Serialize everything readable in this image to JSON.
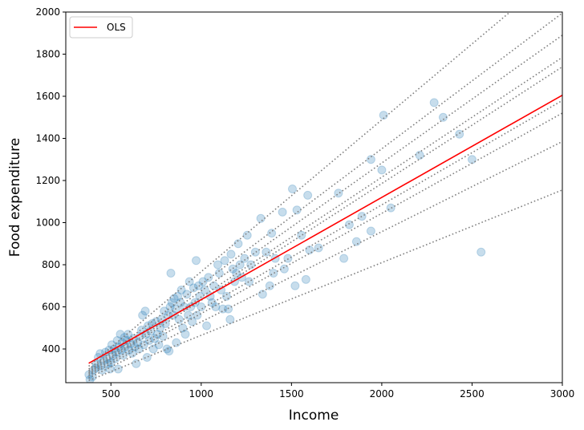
{
  "chart_data": {
    "type": "scatter",
    "title": "",
    "xlabel": "Income",
    "ylabel": "Food expenditure",
    "xlim": [
      250,
      3000
    ],
    "ylim": [
      240,
      2000
    ],
    "xticks": [
      500,
      1000,
      1500,
      2000,
      2500,
      3000
    ],
    "yticks": [
      400,
      600,
      800,
      1000,
      1200,
      1400,
      1600,
      1800,
      2000
    ],
    "grid": false,
    "legend": {
      "position": "upper left",
      "entries": [
        {
          "label": "OLS",
          "color": "#ff0000",
          "style": "solid"
        }
      ]
    },
    "scatter": {
      "color": "#1f77b4",
      "alpha": 0.25,
      "points": [
        [
          378,
          278
        ],
        [
          384,
          255
        ],
        [
          398,
          268
        ],
        [
          405,
          300
        ],
        [
          415,
          310
        ],
        [
          420,
          330
        ],
        [
          430,
          360
        ],
        [
          440,
          378
        ],
        [
          445,
          320
        ],
        [
          452,
          300
        ],
        [
          460,
          345
        ],
        [
          470,
          385
        ],
        [
          478,
          355
        ],
        [
          485,
          330
        ],
        [
          490,
          395
        ],
        [
          495,
          305
        ],
        [
          500,
          335
        ],
        [
          505,
          420
        ],
        [
          512,
          370
        ],
        [
          518,
          400
        ],
        [
          525,
          355
        ],
        [
          530,
          385
        ],
        [
          535,
          440
        ],
        [
          540,
          305
        ],
        [
          545,
          410
        ],
        [
          552,
          470
        ],
        [
          558,
          395
        ],
        [
          562,
          430
        ],
        [
          568,
          370
        ],
        [
          575,
          455
        ],
        [
          580,
          410
        ],
        [
          588,
          440
        ],
        [
          595,
          470
        ],
        [
          600,
          395
        ],
        [
          610,
          425
        ],
        [
          618,
          380
        ],
        [
          625,
          450
        ],
        [
          632,
          410
        ],
        [
          640,
          330
        ],
        [
          648,
          430
        ],
        [
          655,
          400
        ],
        [
          662,
          460
        ],
        [
          670,
          490
        ],
        [
          675,
          560
        ],
        [
          682,
          420
        ],
        [
          690,
          580
        ],
        [
          695,
          470
        ],
        [
          700,
          360
        ],
        [
          705,
          510
        ],
        [
          712,
          440
        ],
        [
          720,
          485
        ],
        [
          728,
          520
        ],
        [
          735,
          400
        ],
        [
          742,
          450
        ],
        [
          750,
          530
        ],
        [
          758,
          470
        ],
        [
          765,
          420
        ],
        [
          772,
          500
        ],
        [
          780,
          540
        ],
        [
          788,
          460
        ],
        [
          795,
          580
        ],
        [
          802,
          520
        ],
        [
          810,
          400
        ],
        [
          818,
          560
        ],
        [
          822,
          390
        ],
        [
          828,
          600
        ],
        [
          832,
          760
        ],
        [
          838,
          620
        ],
        [
          845,
          560
        ],
        [
          850,
          640
        ],
        [
          858,
          590
        ],
        [
          862,
          430
        ],
        [
          870,
          650
        ],
        [
          878,
          540
        ],
        [
          885,
          620
        ],
        [
          890,
          680
        ],
        [
          898,
          500
        ],
        [
          905,
          600
        ],
        [
          912,
          470
        ],
        [
          920,
          660
        ],
        [
          928,
          560
        ],
        [
          935,
          720
        ],
        [
          942,
          600
        ],
        [
          950,
          530
        ],
        [
          958,
          690
        ],
        [
          965,
          620
        ],
        [
          972,
          820
        ],
        [
          978,
          560
        ],
        [
          985,
          700
        ],
        [
          992,
          650
        ],
        [
          1000,
          600
        ],
        [
          1010,
          720
        ],
        [
          1020,
          680
        ],
        [
          1030,
          510
        ],
        [
          1040,
          740
        ],
        [
          1050,
          650
        ],
        [
          1060,
          620
        ],
        [
          1070,
          700
        ],
        [
          1080,
          600
        ],
        [
          1092,
          800
        ],
        [
          1100,
          760
        ],
        [
          1110,
          680
        ],
        [
          1120,
          590
        ],
        [
          1130,
          820
        ],
        [
          1140,
          650
        ],
        [
          1150,
          590
        ],
        [
          1160,
          540
        ],
        [
          1165,
          850
        ],
        [
          1175,
          780
        ],
        [
          1185,
          720
        ],
        [
          1195,
          760
        ],
        [
          1205,
          900
        ],
        [
          1215,
          800
        ],
        [
          1225,
          740
        ],
        [
          1240,
          830
        ],
        [
          1255,
          940
        ],
        [
          1265,
          720
        ],
        [
          1275,
          800
        ],
        [
          1300,
          860
        ],
        [
          1330,
          1020
        ],
        [
          1340,
          660
        ],
        [
          1360,
          860
        ],
        [
          1380,
          700
        ],
        [
          1390,
          950
        ],
        [
          1400,
          760
        ],
        [
          1410,
          830
        ],
        [
          1450,
          1050
        ],
        [
          1460,
          780
        ],
        [
          1480,
          830
        ],
        [
          1505,
          1160
        ],
        [
          1520,
          700
        ],
        [
          1530,
          1060
        ],
        [
          1555,
          940
        ],
        [
          1580,
          730
        ],
        [
          1590,
          1130
        ],
        [
          1600,
          870
        ],
        [
          1650,
          880
        ],
        [
          1760,
          1140
        ],
        [
          1790,
          830
        ],
        [
          1820,
          990
        ],
        [
          1860,
          910
        ],
        [
          1890,
          1030
        ],
        [
          1940,
          960
        ],
        [
          1940,
          1300
        ],
        [
          2000,
          1250
        ],
        [
          2010,
          1510
        ],
        [
          2050,
          1070
        ],
        [
          2210,
          1320
        ],
        [
          2290,
          1570
        ],
        [
          2340,
          1500
        ],
        [
          2430,
          1420
        ],
        [
          2500,
          1300
        ],
        [
          2550,
          860
        ]
      ]
    },
    "series": [
      {
        "name": "OLS",
        "type": "line",
        "color": "#ff0000",
        "style": "solid",
        "x": [
          377,
          3000
        ],
        "y": [
          332,
          1605
        ]
      },
      {
        "name": "q0.05",
        "type": "line",
        "color": "#808080",
        "style": "dotted",
        "x": [
          377,
          3000
        ],
        "y": [
          250,
          1155
        ]
      },
      {
        "name": "q0.15",
        "type": "line",
        "color": "#808080",
        "style": "dotted",
        "x": [
          377,
          3000
        ],
        "y": [
          262,
          1385
        ]
      },
      {
        "name": "q0.25",
        "type": "line",
        "color": "#808080",
        "style": "dotted",
        "x": [
          377,
          3000
        ],
        "y": [
          272,
          1520
        ]
      },
      {
        "name": "q0.35",
        "type": "line",
        "color": "#808080",
        "style": "dotted",
        "x": [
          377,
          3000
        ],
        "y": [
          280,
          1580
        ]
      },
      {
        "name": "q0.45",
        "type": "line",
        "color": "#808080",
        "style": "dotted",
        "x": [
          377,
          3000
        ],
        "y": [
          286,
          1740
        ]
      },
      {
        "name": "q0.55",
        "type": "line",
        "color": "#808080",
        "style": "dotted",
        "x": [
          377,
          3000
        ],
        "y": [
          292,
          1785
        ]
      },
      {
        "name": "q0.65",
        "type": "line",
        "color": "#808080",
        "style": "dotted",
        "x": [
          377,
          3000
        ],
        "y": [
          298,
          1890
        ]
      },
      {
        "name": "q0.75",
        "type": "line",
        "color": "#808080",
        "style": "dotted",
        "x": [
          377,
          3000
        ],
        "y": [
          305,
          1995
        ]
      },
      {
        "name": "q0.95",
        "type": "line",
        "color": "#808080",
        "style": "dotted",
        "x": [
          377,
          2710
        ],
        "y": [
          318,
          2000
        ]
      }
    ]
  },
  "legend": {
    "ols_label": "OLS"
  },
  "axes": {
    "xlabel": "Income",
    "ylabel": "Food expenditure"
  }
}
